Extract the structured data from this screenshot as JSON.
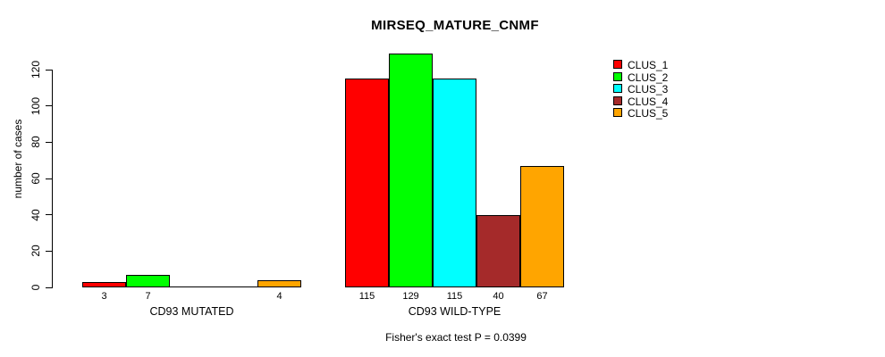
{
  "title": "MIRSEQ_MATURE_CNMF",
  "footnote": "Fisher's exact test P = 0.0399",
  "axes": {
    "ylabel": "number of cases",
    "yticks": [
      "0",
      "20",
      "40",
      "60",
      "80",
      "100",
      "120"
    ]
  },
  "legend": {
    "position": "top-right",
    "items": [
      {
        "label": "CLUS_1",
        "color": "#FF0000"
      },
      {
        "label": "CLUS_2",
        "color": "#00FF00"
      },
      {
        "label": "CLUS_3",
        "color": "#00FFFF"
      },
      {
        "label": "CLUS_4",
        "color": "#A52A2A"
      },
      {
        "label": "CLUS_5",
        "color": "#FFA500"
      }
    ]
  },
  "chart_data": {
    "type": "bar",
    "title": "MIRSEQ_MATURE_CNMF",
    "xlabel": "",
    "ylabel": "number of cases",
    "ylim": [
      0,
      130
    ],
    "yticks": [
      0,
      20,
      40,
      60,
      80,
      100,
      120
    ],
    "grid": false,
    "legend_position": "top-right",
    "categories": [
      "CD93 MUTATED",
      "CD93 WILD-TYPE"
    ],
    "series": [
      {
        "name": "CLUS_1",
        "color": "#FF0000",
        "values": [
          3,
          115
        ]
      },
      {
        "name": "CLUS_2",
        "color": "#00FF00",
        "values": [
          7,
          129
        ]
      },
      {
        "name": "CLUS_3",
        "color": "#00FFFF",
        "values": [
          0,
          115
        ]
      },
      {
        "name": "CLUS_4",
        "color": "#A52A2A",
        "values": [
          0,
          40
        ]
      },
      {
        "name": "CLUS_5",
        "color": "#FFA500",
        "values": [
          4,
          67
        ]
      }
    ],
    "bar_value_labels_shown_only_when_nonzero": true,
    "annotation": "Fisher's exact test P = 0.0399"
  }
}
